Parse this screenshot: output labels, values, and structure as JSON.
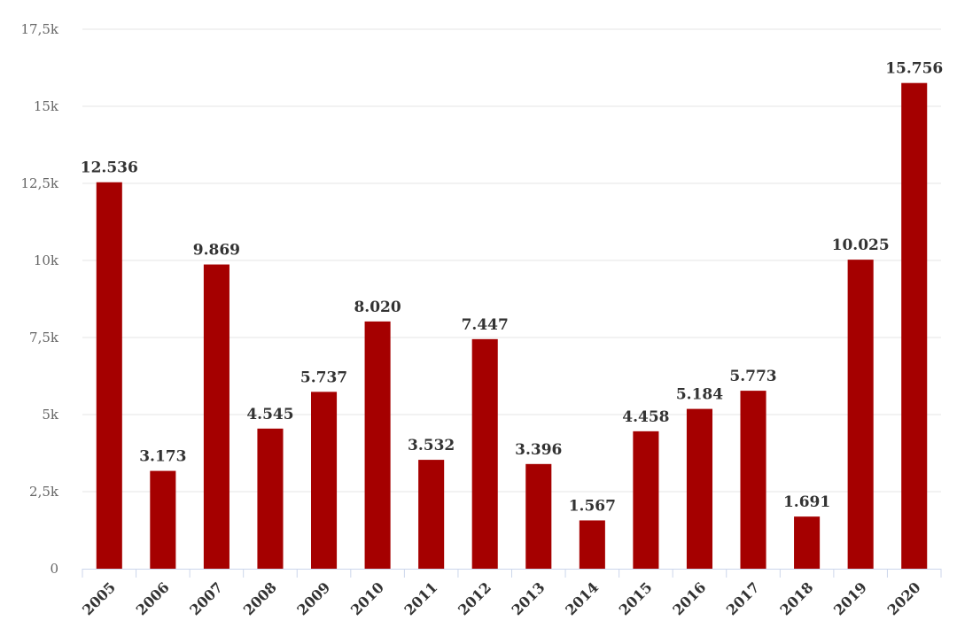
{
  "chart_data": {
    "type": "bar",
    "title": "",
    "xlabel": "",
    "ylabel": "",
    "categories": [
      "2005",
      "2006",
      "2007",
      "2008",
      "2009",
      "2010",
      "2011",
      "2012",
      "2013",
      "2014",
      "2015",
      "2016",
      "2017",
      "2018",
      "2019",
      "2020"
    ],
    "values": [
      12536,
      3173,
      9869,
      4545,
      5737,
      8020,
      3532,
      7447,
      3396,
      1567,
      4458,
      5184,
      5773,
      1691,
      10025,
      15756
    ],
    "data_labels": [
      "12.536",
      "3.173",
      "9.869",
      "4.545",
      "5.737",
      "8.020",
      "3.532",
      "7.447",
      "3.396",
      "1.567",
      "4.458",
      "5.184",
      "5.773",
      "1.691",
      "10.025",
      "15.756"
    ],
    "ylim": [
      0,
      17500
    ],
    "yticks": [
      0,
      2500,
      5000,
      7500,
      10000,
      12500,
      15000,
      17500
    ],
    "ytick_labels": [
      "0",
      "2,5k",
      "5k",
      "7,5k",
      "10k",
      "12,5k",
      "15k",
      "17,5k"
    ],
    "grid": true,
    "legend": "none",
    "bar_color": "#a50000"
  }
}
